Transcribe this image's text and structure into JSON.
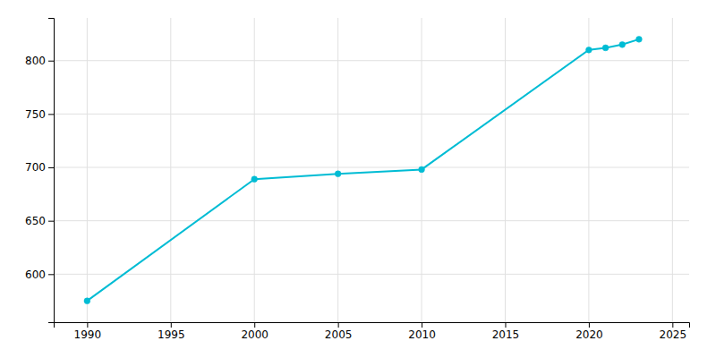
{
  "chart_data": {
    "type": "line",
    "x": [
      1990,
      2000,
      2005,
      2010,
      2020,
      2021,
      2022,
      2023
    ],
    "values": [
      575,
      689,
      694,
      698,
      810,
      812,
      815,
      820
    ],
    "color": "#00BCD4",
    "marker": "circle",
    "xlim": [
      1988,
      2026
    ],
    "ylim": [
      555,
      840
    ],
    "xticks": [
      1990,
      1995,
      2000,
      2005,
      2010,
      2015,
      2020,
      2025
    ],
    "yticks": [
      600,
      650,
      700,
      750,
      800
    ],
    "grid": true
  }
}
